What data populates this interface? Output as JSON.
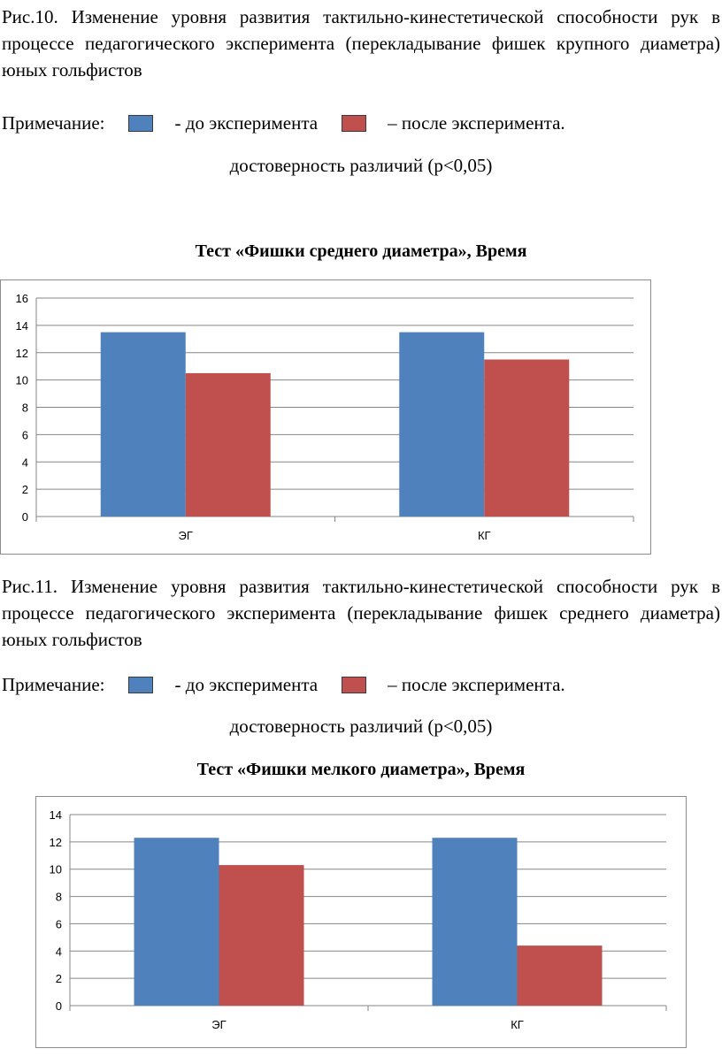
{
  "figure10": {
    "caption_lines": [
      "Рис.10. Изменение уровня развития тактильно-кинестетической способности рук",
      "в процессе педагогического эксперимента (перекладывание фишек крупного",
      "диаметра) юных гольфистов"
    ],
    "note_label": "Примечание:",
    "legend_before": "- до эксперимента",
    "legend_after": "– после эксперимента.",
    "significance": "достоверность различий (р<0,05)"
  },
  "figure11": {
    "caption_lines": [
      "Рис.11. Изменение уровня развития тактильно-кинестетической способности рук",
      "в процессе педагогического эксперимента (перекладывание фишек среднего",
      "диаметра) юных гольфистов"
    ],
    "note_label": "Примечание:",
    "legend_before": "- до эксперимента",
    "legend_after": "– после эксперимента.",
    "significance": "достоверность различий (р<0,05)"
  },
  "colors": {
    "before": "#4f81bd",
    "after": "#c0504d",
    "grid": "#868686"
  },
  "chart_data": [
    {
      "type": "bar",
      "title": "Тест «Фишки среднего диаметра», Время",
      "categories": [
        "ЭГ",
        "КГ"
      ],
      "series": [
        {
          "values": [
            13.5,
            13.5
          ]
        },
        {
          "values": [
            10.5,
            11.5
          ]
        }
      ],
      "ylim": [
        0,
        16
      ],
      "yticks": [
        "0",
        "2",
        "4",
        "6",
        "8",
        "10",
        "12",
        "14",
        "16"
      ],
      "grid": true
    },
    {
      "type": "bar",
      "title": "Тест «Фишки мелкого диаметра», Время",
      "categories": [
        "ЭГ",
        "КГ"
      ],
      "series": [
        {
          "values": [
            12.3,
            12.3
          ]
        },
        {
          "values": [
            10.3,
            4.4
          ]
        }
      ],
      "ylim": [
        0,
        14
      ],
      "yticks": [
        "0",
        "2",
        "4",
        "6",
        "8",
        "10",
        "12",
        "14"
      ],
      "grid": true
    }
  ]
}
